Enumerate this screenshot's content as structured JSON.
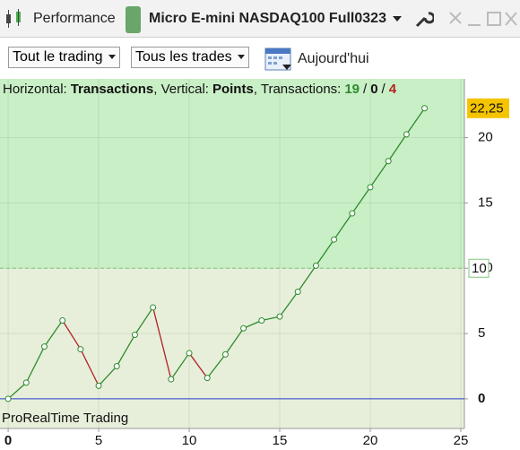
{
  "toolbar": {
    "title": "Performance",
    "instrument": "Micro E-mini NASDAQ100 Full0323"
  },
  "filters": {
    "scope": "Tout le trading",
    "trades": "Tous les trades",
    "period": "Aujourd'hui"
  },
  "header": {
    "h_label": "Horizontal:",
    "h_value": "Transactions",
    "v_label": ", Vertical:",
    "v_value": "Points",
    "t_label": ", Transactions:",
    "wins": 19,
    "sep1": "/",
    "even": 0,
    "sep2": "/",
    "losses": 4
  },
  "watermark": "ProRealTime Trading",
  "chart_data": {
    "type": "line",
    "x": [
      0,
      1,
      2,
      3,
      4,
      5,
      6,
      7,
      8,
      9,
      10,
      11,
      12,
      13,
      14,
      15,
      16,
      17,
      18,
      19,
      20,
      21,
      22,
      23
    ],
    "values": [
      0,
      1.24,
      4.0,
      6.0,
      3.8,
      1.0,
      2.5,
      4.9,
      7.0,
      1.5,
      3.5,
      1.6,
      3.4,
      5.4,
      6.0,
      6.3,
      8.2,
      10.2,
      12.2,
      14.2,
      16.2,
      18.2,
      20.25,
      22.25
    ],
    "last_value_label": "22,25",
    "up_color": "#2e8b2e",
    "down_color": "#b22222",
    "reference_line": 10,
    "xlim": [
      -0.45,
      25.2
    ],
    "xticks": [
      0,
      5,
      10,
      15,
      20,
      25
    ],
    "ylim": [
      -2.27,
      24.5
    ],
    "yticks": [
      0,
      5,
      10,
      15,
      20
    ],
    "grid": true
  }
}
